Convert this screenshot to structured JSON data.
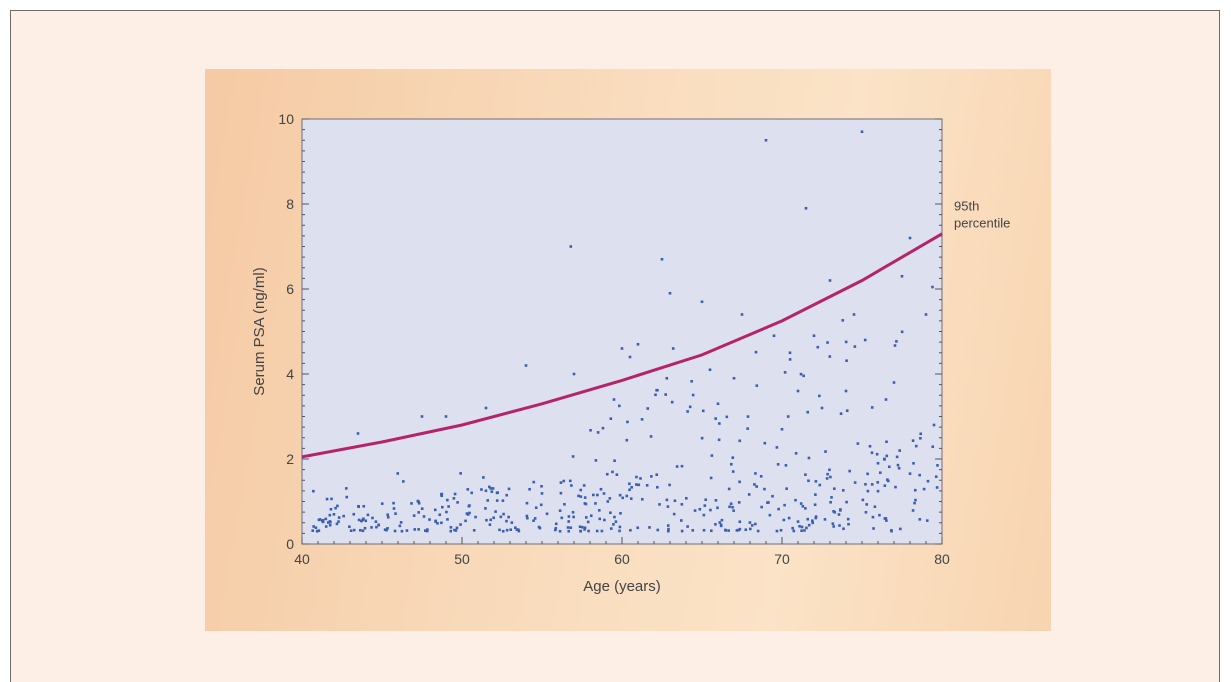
{
  "chart_data": {
    "type": "scatter",
    "title": "",
    "xlabel": "Age (years)",
    "ylabel": "Serum PSA (ng/ml)",
    "xlim": [
      40,
      80
    ],
    "ylim": [
      0,
      10
    ],
    "x_ticks": [
      40,
      50,
      60,
      70,
      80
    ],
    "y_ticks": [
      0,
      2,
      4,
      6,
      8,
      10
    ],
    "grid": false,
    "colors": {
      "points": "#3a5fb0",
      "curve": "#b5246a",
      "plot_bg": "#dde0ef"
    },
    "annotation": {
      "lines": [
        "95th",
        "percentile"
      ]
    },
    "percentile_curve": {
      "x": [
        40,
        45,
        50,
        55,
        60,
        65,
        70,
        75,
        80
      ],
      "y": [
        2.05,
        2.4,
        2.8,
        3.3,
        3.85,
        4.45,
        5.25,
        6.2,
        7.3
      ]
    },
    "outliers": {
      "x": [
        43.5,
        47.5,
        49.0,
        51.5,
        54.0,
        56.8,
        57.0,
        59.5,
        60.0,
        60.5,
        61.0,
        62.5,
        62.8,
        63.0,
        63.2,
        65.0,
        65.5,
        66.0,
        67.5,
        67.0,
        69.0,
        69.5,
        70.0,
        70.5,
        71.0,
        71.5,
        72.0,
        72.5,
        73.0,
        74.0,
        74.5,
        75.0,
        75.2,
        75.5,
        76.0,
        76.5,
        77.0,
        77.5,
        78.0,
        79.0,
        79.5
      ],
      "y": [
        2.6,
        3.0,
        3.0,
        3.2,
        4.2,
        7.0,
        4.0,
        3.4,
        4.6,
        4.4,
        4.7,
        6.7,
        3.9,
        5.9,
        4.6,
        5.7,
        4.1,
        3.3,
        5.4,
        3.9,
        9.5,
        4.9,
        2.7,
        4.5,
        3.6,
        7.9,
        4.9,
        3.2,
        6.2,
        3.6,
        5.4,
        9.7,
        4.8,
        2.3,
        1.9,
        3.4,
        3.8,
        6.3,
        7.2,
        5.4,
        2.8
      ]
    }
  }
}
